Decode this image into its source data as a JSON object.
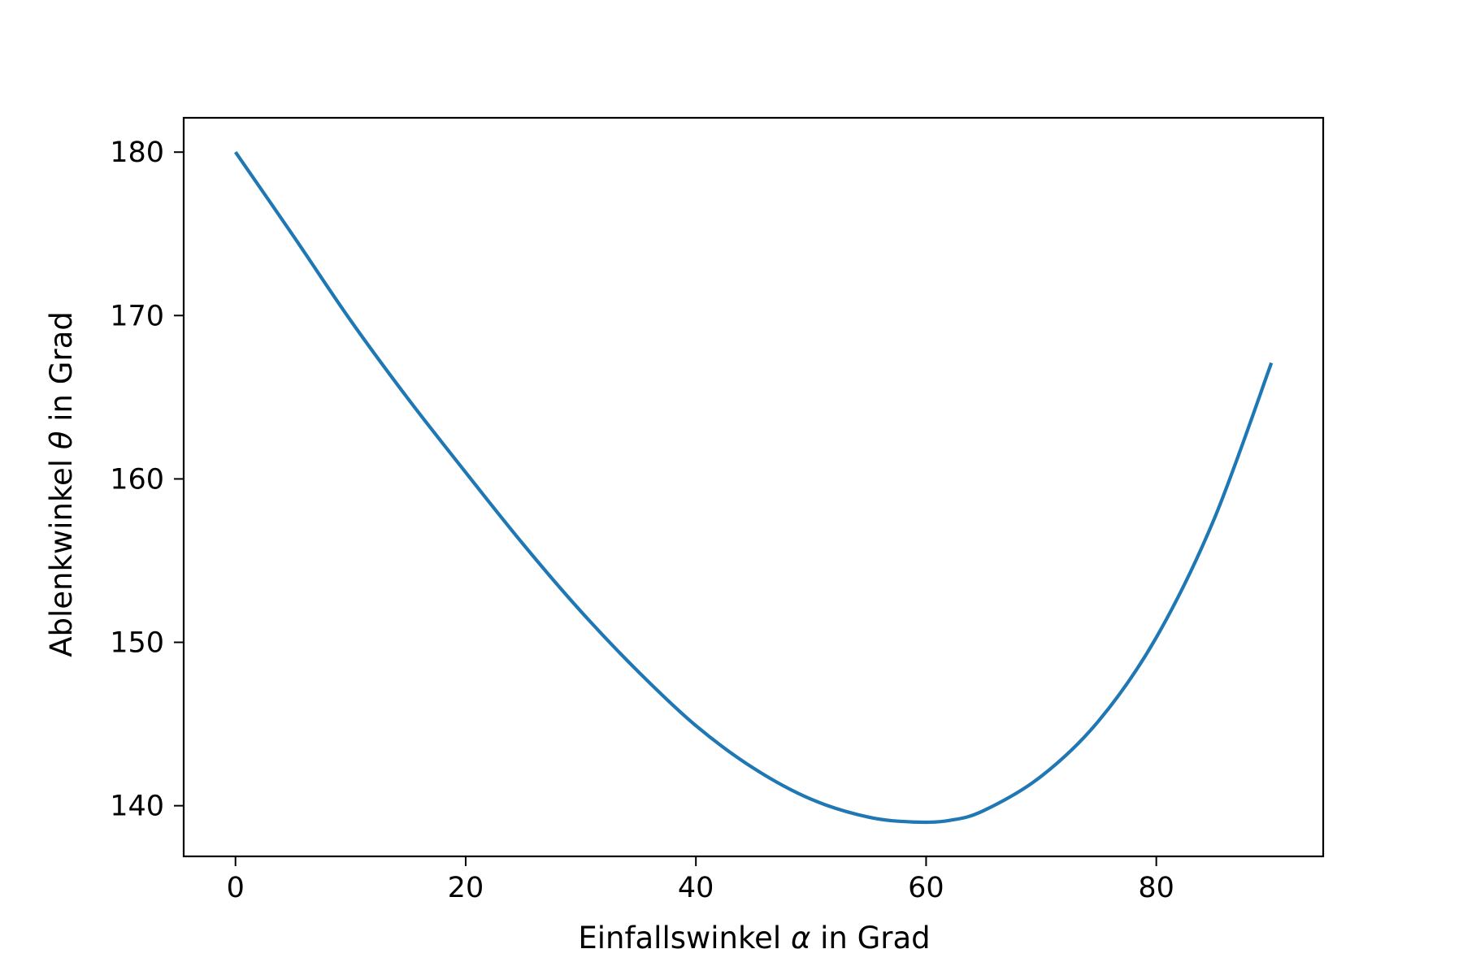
{
  "chart_data": {
    "type": "line",
    "title": "",
    "xlabel": {
      "before": "Einfallswinkel ",
      "symbol": "α",
      "after": " in Grad"
    },
    "ylabel": {
      "before": "Ablenkwinkel ",
      "symbol": "θ",
      "after": " in Grad"
    },
    "xlim": [
      -4.5,
      94.5
    ],
    "ylim": [
      136.9,
      182.1
    ],
    "xticks": [
      0,
      20,
      40,
      60,
      80
    ],
    "yticks": [
      140,
      150,
      160,
      170,
      180
    ],
    "xtick_labels": [
      "0",
      "20",
      "40",
      "60",
      "80"
    ],
    "ytick_labels": [
      "140",
      "150",
      "160",
      "170",
      "180"
    ],
    "grid": false,
    "legend": "none",
    "series": [
      {
        "color": "#1f77b4",
        "x": [
          0,
          5,
          10,
          15,
          20,
          25,
          30,
          35,
          40,
          45,
          50,
          55,
          59,
          62,
          65,
          70,
          75,
          80,
          85,
          90
        ],
        "y": [
          180.0,
          174.9,
          169.7,
          164.9,
          160.4,
          156.0,
          151.9,
          148.2,
          144.9,
          142.3,
          140.4,
          139.3,
          139.0,
          139.1,
          139.7,
          141.8,
          145.2,
          150.3,
          157.5,
          167.1
        ]
      }
    ]
  }
}
